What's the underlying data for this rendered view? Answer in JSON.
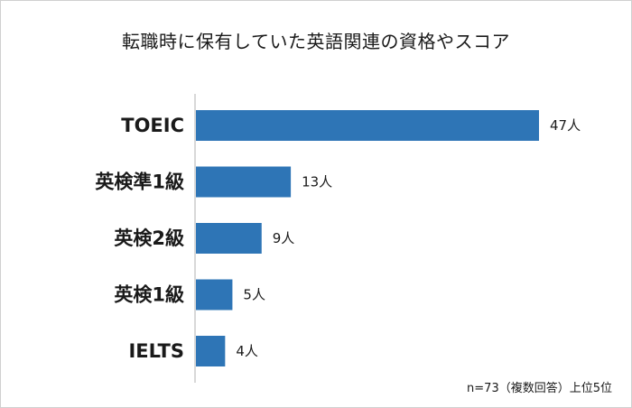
{
  "chart_data": {
    "type": "bar",
    "orientation": "horizontal",
    "title": "転職時に保有していた英語関連の資格やスコア",
    "categories": [
      "TOEIC",
      "英検準1級",
      "英検2級",
      "英検1級",
      "IELTS"
    ],
    "values": [
      47,
      13,
      9,
      5,
      4
    ],
    "value_labels": [
      "47人",
      "13人",
      "9人",
      "5人",
      "4人"
    ],
    "xlim": [
      0,
      47
    ],
    "grid": false,
    "bar_color": "#2e75b6",
    "axis_color": "#b0b0b0"
  },
  "footnote": "n=73（複数回答）上位5位"
}
